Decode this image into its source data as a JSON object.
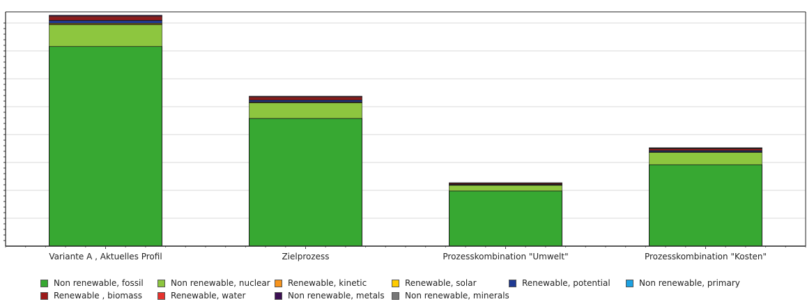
{
  "chart_data": {
    "type": "bar",
    "stacked": true,
    "categories": [
      "Variante A , Aktuelles Profil",
      "Zielprozess",
      "Prozesskombination \"Umwelt\"",
      "Prozesskombination \"Kosten\""
    ],
    "ylim": [
      0,
      420
    ],
    "grid": true,
    "y_tick_labels_shown": false,
    "legend_position": "bottom",
    "series": [
      {
        "name": "Non renewable, fossil",
        "color": "#37a832",
        "values": [
          358,
          229,
          99,
          146
        ]
      },
      {
        "name": "Non renewable, nuclear",
        "color": "#8dc63f",
        "values": [
          39,
          28,
          10,
          22
        ]
      },
      {
        "name": "Renewable, kinetic",
        "color": "#f7941d",
        "values": [
          1,
          0.7,
          0.3,
          0.5
        ]
      },
      {
        "name": "Renewable, solar",
        "color": "#ffcc00",
        "values": [
          1.5,
          1,
          0.4,
          0.7
        ]
      },
      {
        "name": "Renewable, potential",
        "color": "#1f3a93",
        "values": [
          5,
          3,
          1,
          2
        ]
      },
      {
        "name": "Non renewable, primary",
        "color": "#1ca1e2",
        "values": [
          0.5,
          0.3,
          0.1,
          0.2
        ]
      },
      {
        "name": "Renewable , biomass",
        "color": "#9b1b1b",
        "values": [
          5,
          4,
          1.5,
          3
        ]
      },
      {
        "name": "Renewable, water",
        "color": "#e5322d",
        "values": [
          2,
          1.5,
          0.8,
          1
        ]
      },
      {
        "name": "Non renewable, metals",
        "color": "#3c1053",
        "values": [
          1.5,
          1,
          0.4,
          0.8
        ]
      },
      {
        "name": "Non renewable, minerals",
        "color": "#777777",
        "values": [
          0.5,
          0.3,
          0.1,
          0.2
        ]
      }
    ]
  }
}
